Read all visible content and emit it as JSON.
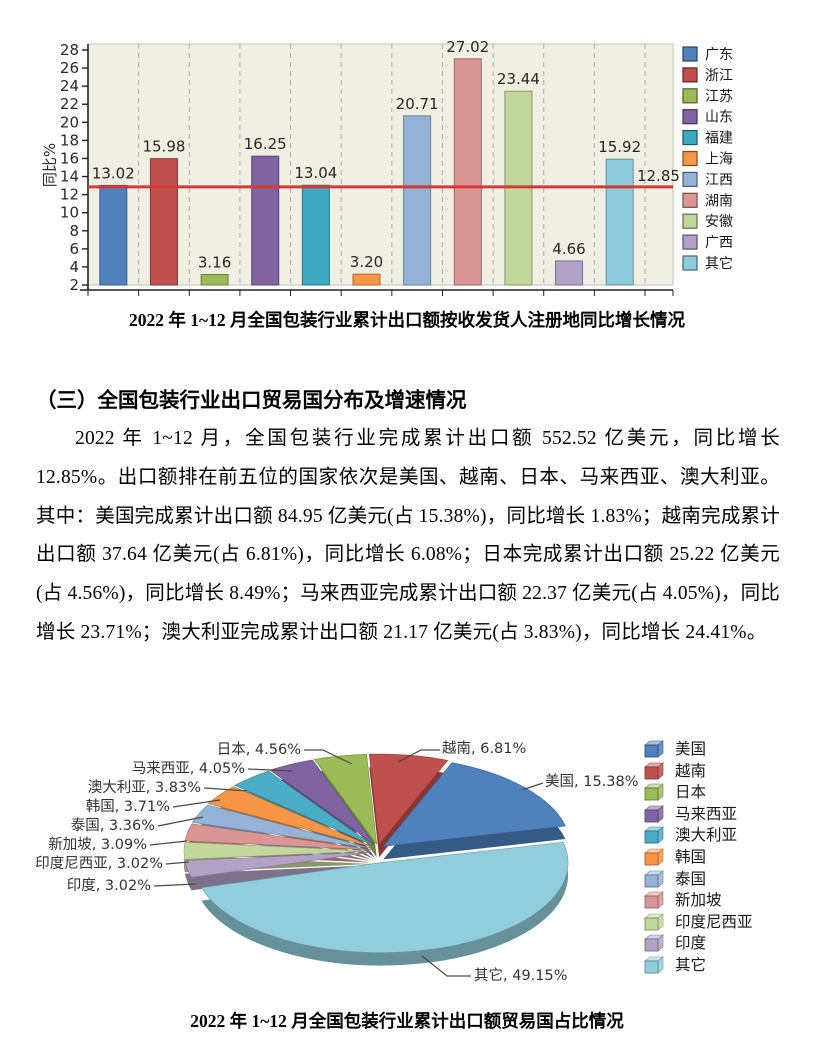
{
  "section": {
    "heading": "（三）全国包装行业出口贸易国分布及增速情况",
    "paragraph": "2022 年 1~12 月，全国包装行业完成累计出口额 552.52 亿美元，同比增长 12.85%。出口额排在前五位的国家依次是美国、越南、日本、马来西亚、澳大利亚。其中：美国完成累计出口额 84.95 亿美元(占 15.38%)，同比增长 1.83%；越南完成累计出口额 37.64 亿美元(占 6.81%)，同比增长 6.08%；日本完成累计出口额 25.22 亿美元(占 4.56%)，同比增长 8.49%；马来西亚完成累计出口额 22.37 亿美元(占 4.05%)，同比增长 23.71%；澳大利亚完成累计出口额 21.17 亿美元(占 3.83%)，同比增长 24.41%。"
  },
  "chart_data": [
    {
      "type": "bar",
      "title": "2022 年 1~12 月全国包装行业累计出口额按收发货人注册地同比增长情况",
      "ylabel": "同比%",
      "ylim": [
        2,
        28
      ],
      "ytick_step": 2,
      "grid": "vertical-dashed",
      "plot_bg": "#f0efe3",
      "legend_position": "right",
      "legend_marker": "square",
      "categories": [
        "广东",
        "浙江",
        "江苏",
        "山东",
        "福建",
        "上海",
        "江西",
        "湖南",
        "安徽",
        "广西",
        "其它"
      ],
      "values": [
        13.02,
        15.98,
        3.16,
        16.25,
        13.04,
        3.2,
        20.71,
        27.02,
        23.44,
        4.66,
        15.92
      ],
      "colors": [
        "#4f81bd",
        "#c0504d",
        "#9bbb59",
        "#8064a2",
        "#3fa9c2",
        "#f79646",
        "#95b3d7",
        "#d99694",
        "#c3d69b",
        "#b3a2c7",
        "#8fcbdc"
      ],
      "reference_line": {
        "value": 12.85,
        "label": "12.85",
        "color": "#d43a33"
      }
    },
    {
      "type": "pie",
      "title": "2022 年 1~12 月全国包装行业累计出口额贸易国占比情况",
      "style": "3d-exploded",
      "legend_position": "right",
      "legend_marker": "cube",
      "labels": [
        "美国",
        "越南",
        "日本",
        "马来西亚",
        "澳大利亚",
        "韩国",
        "泰国",
        "新加坡",
        "印度尼西亚",
        "印度",
        "其它"
      ],
      "values": [
        15.38,
        6.81,
        4.56,
        4.05,
        3.83,
        3.71,
        3.36,
        3.09,
        3.02,
        3.02,
        49.15
      ],
      "colors": [
        "#4f81bd",
        "#c0504d",
        "#9bbb59",
        "#8064a2",
        "#4bacc6",
        "#f79646",
        "#95b3d7",
        "#d99694",
        "#c3d69b",
        "#b3a2c7",
        "#92cddc"
      ],
      "data_label_format": "{label}, {value}%"
    }
  ]
}
